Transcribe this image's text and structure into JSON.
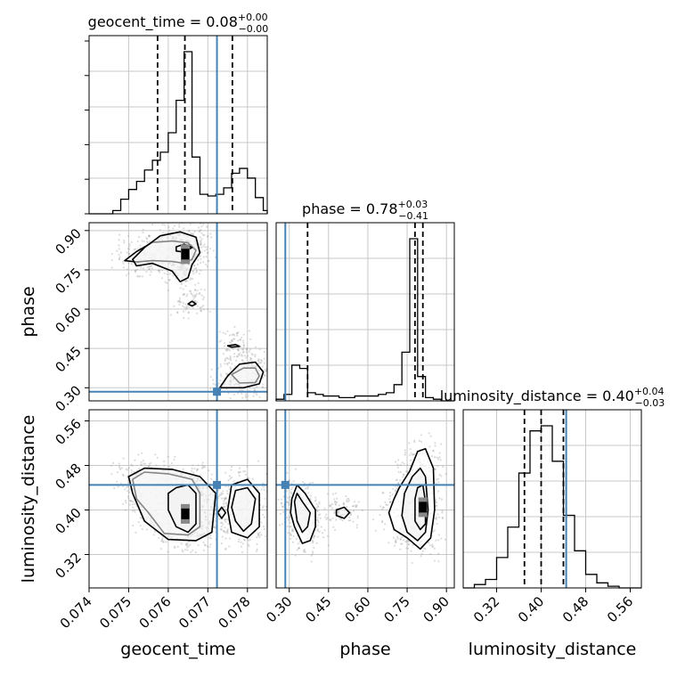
{
  "chart_data": {
    "type": "corner",
    "parameters": [
      "geocent_time",
      "phase",
      "luminosity_distance"
    ],
    "truth_color": "#4682b4",
    "truths": {
      "geocent_time": 0.07723,
      "phase": 0.285,
      "luminosity_distance": 0.445
    },
    "titles": {
      "geocent_time": {
        "prefix": "geocent_time = ",
        "value": "0.08",
        "plus": "+0.00",
        "minus": "−0.00"
      },
      "phase": {
        "prefix": "phase = ",
        "value": "0.78",
        "plus": "+0.03",
        "minus": "−0.41"
      },
      "luminosity_distance": {
        "prefix": "luminosity_distance = ",
        "value": "0.40",
        "plus": "+0.04",
        "minus": "−0.03"
      }
    },
    "axes": {
      "geocent_time": {
        "label": "geocent_time",
        "range": [
          0.074,
          0.0785
        ],
        "ticks": [
          0.074,
          0.075,
          0.076,
          0.077,
          0.078
        ],
        "tick_labels": [
          "0.074",
          "0.075",
          "0.076",
          "0.077",
          "0.078"
        ]
      },
      "phase": {
        "label": "phase",
        "range": [
          0.25,
          0.93
        ],
        "ticks": [
          0.3,
          0.45,
          0.6,
          0.75,
          0.9
        ],
        "tick_labels": [
          "0.30",
          "0.45",
          "0.60",
          "0.75",
          "0.90"
        ]
      },
      "luminosity_distance": {
        "label": "luminosity_distance",
        "range": [
          0.26,
          0.58
        ],
        "ticks": [
          0.32,
          0.4,
          0.48,
          0.56
        ],
        "tick_labels": [
          "0.32",
          "0.40",
          "0.48",
          "0.56"
        ]
      }
    },
    "histograms": {
      "geocent_time": {
        "edges": [
          0.074,
          0.0742,
          0.0744,
          0.0746,
          0.0748,
          0.075,
          0.0752,
          0.0754,
          0.0756,
          0.0758,
          0.076,
          0.0762,
          0.0764,
          0.0766,
          0.0768,
          0.077,
          0.0772,
          0.0774,
          0.0776,
          0.0778,
          0.078,
          0.0782,
          0.0784,
          0.0785
        ],
        "counts": [
          0,
          0,
          0,
          0.02,
          0.09,
          0.15,
          0.2,
          0.27,
          0.33,
          0.38,
          0.5,
          0.7,
          1.0,
          0.35,
          0.12,
          0.11,
          0.12,
          0.16,
          0.25,
          0.28,
          0.22,
          0.1,
          0.02
        ],
        "quantiles": [
          0.07573,
          0.07642,
          0.07762
        ]
      },
      "phase": {
        "edges": [
          0.25,
          0.28,
          0.31,
          0.34,
          0.37,
          0.4,
          0.43,
          0.46,
          0.49,
          0.52,
          0.55,
          0.58,
          0.61,
          0.64,
          0.67,
          0.7,
          0.73,
          0.76,
          0.79,
          0.82,
          0.85,
          0.88,
          0.91,
          0.93
        ],
        "counts": [
          0.01,
          0.04,
          0.22,
          0.2,
          0.05,
          0.04,
          0.03,
          0.03,
          0.02,
          0.02,
          0.03,
          0.03,
          0.03,
          0.04,
          0.05,
          0.1,
          0.3,
          1.0,
          0.15,
          0.02,
          0.01,
          0,
          0
        ],
        "quantiles": [
          0.37,
          0.78,
          0.81
        ]
      },
      "luminosity_distance": {
        "edges": [
          0.26,
          0.28,
          0.3,
          0.32,
          0.34,
          0.36,
          0.38,
          0.4,
          0.42,
          0.44,
          0.46,
          0.48,
          0.5,
          0.52,
          0.54,
          0.56,
          0.58
        ],
        "counts": [
          0.0,
          0.02,
          0.05,
          0.18,
          0.36,
          0.68,
          0.93,
          0.96,
          0.75,
          0.43,
          0.22,
          0.08,
          0.03,
          0.01,
          0,
          0
        ],
        "quantiles": [
          0.37,
          0.4,
          0.44
        ]
      }
    },
    "density": {
      "phase_vs_geocent_time": {
        "contours": [
          [
            [
              0.0749,
              0.785
            ],
            [
              0.0752,
              0.82
            ],
            [
              0.0756,
              0.855
            ],
            [
              0.0761,
              0.86
            ],
            [
              0.0765,
              0.853
            ],
            [
              0.0767,
              0.825
            ],
            [
              0.0766,
              0.79
            ],
            [
              0.0764,
              0.775
            ],
            [
              0.0761,
              0.782
            ],
            [
              0.0756,
              0.785
            ],
            [
              0.0752,
              0.78
            ]
          ],
          [
            [
              0.0751,
              0.79
            ],
            [
              0.0754,
              0.835
            ],
            [
              0.0758,
              0.88
            ],
            [
              0.0763,
              0.895
            ],
            [
              0.0767,
              0.875
            ],
            [
              0.0768,
              0.815
            ],
            [
              0.0766,
              0.77
            ],
            [
              0.0765,
              0.72
            ],
            [
              0.0763,
              0.705
            ],
            [
              0.0761,
              0.745
            ],
            [
              0.0756,
              0.775
            ],
            [
              0.0752,
              0.765
            ]
          ],
          [
            [
              0.0762,
              0.838
            ],
            [
              0.0764,
              0.848
            ],
            [
              0.0766,
              0.835
            ],
            [
              0.0764,
              0.818
            ],
            [
              0.0762,
              0.822
            ]
          ],
          [
            [
              0.0776,
              0.35
            ],
            [
              0.0779,
              0.375
            ],
            [
              0.0782,
              0.375
            ],
            [
              0.0783,
              0.345
            ],
            [
              0.0782,
              0.32
            ],
            [
              0.0778,
              0.318
            ]
          ],
          [
            [
              0.0773,
              0.3
            ],
            [
              0.0775,
              0.345
            ],
            [
              0.0778,
              0.39
            ],
            [
              0.0782,
              0.398
            ],
            [
              0.0784,
              0.36
            ],
            [
              0.0783,
              0.315
            ],
            [
              0.0779,
              0.3
            ]
          ],
          [
            [
              0.0765,
              0.62
            ],
            [
              0.0766,
              0.63
            ],
            [
              0.0767,
              0.62
            ],
            [
              0.0766,
              0.612
            ]
          ],
          [
            [
              0.0775,
              0.46
            ],
            [
              0.0777,
              0.465
            ],
            [
              0.0778,
              0.458
            ],
            [
              0.0776,
              0.455
            ]
          ]
        ],
        "peak": [
          0.07643,
          0.81
        ]
      },
      "luminosity_distance_vs_geocent_time": {
        "contours": [
          [
            [
              0.0751,
              0.455
            ],
            [
              0.0754,
              0.468
            ],
            [
              0.076,
              0.465
            ],
            [
              0.0766,
              0.455
            ],
            [
              0.0768,
              0.43
            ],
            [
              0.0768,
              0.37
            ],
            [
              0.0765,
              0.355
            ],
            [
              0.0759,
              0.358
            ],
            [
              0.0755,
              0.395
            ],
            [
              0.0752,
              0.42
            ]
          ],
          [
            [
              0.075,
              0.46
            ],
            [
              0.0754,
              0.475
            ],
            [
              0.0761,
              0.473
            ],
            [
              0.0768,
              0.46
            ],
            [
              0.0772,
              0.43
            ],
            [
              0.0771,
              0.36
            ],
            [
              0.0767,
              0.345
            ],
            [
              0.076,
              0.347
            ],
            [
              0.0754,
              0.38
            ],
            [
              0.0751,
              0.43
            ]
          ],
          [
            [
              0.0762,
              0.44
            ],
            [
              0.0765,
              0.445
            ],
            [
              0.0767,
              0.43
            ],
            [
              0.0767,
              0.375
            ],
            [
              0.0765,
              0.36
            ],
            [
              0.0762,
              0.37
            ],
            [
              0.076,
              0.4
            ],
            [
              0.076,
              0.43
            ]
          ],
          [
            [
              0.0776,
              0.445
            ],
            [
              0.078,
              0.455
            ],
            [
              0.0783,
              0.43
            ],
            [
              0.0783,
              0.37
            ],
            [
              0.078,
              0.35
            ],
            [
              0.0776,
              0.36
            ],
            [
              0.0775,
              0.4
            ]
          ],
          [
            [
              0.0777,
              0.435
            ],
            [
              0.078,
              0.44
            ],
            [
              0.0782,
              0.42
            ],
            [
              0.0781,
              0.375
            ],
            [
              0.0779,
              0.362
            ],
            [
              0.0777,
              0.38
            ],
            [
              0.0776,
              0.405
            ]
          ],
          [
            [
              0.07725,
              0.395
            ],
            [
              0.07735,
              0.405
            ],
            [
              0.07745,
              0.395
            ],
            [
              0.07735,
              0.385
            ]
          ]
        ],
        "peak": [
          0.07643,
          0.393
        ]
      },
      "luminosity_distance_vs_phase": {
        "contours": [
          [
            [
              0.31,
              0.42
            ],
            [
              0.33,
              0.445
            ],
            [
              0.36,
              0.43
            ],
            [
              0.4,
              0.4
            ],
            [
              0.4,
              0.37
            ],
            [
              0.38,
              0.345
            ],
            [
              0.35,
              0.34
            ],
            [
              0.32,
              0.37
            ],
            [
              0.305,
              0.395
            ]
          ],
          [
            [
              0.32,
              0.415
            ],
            [
              0.33,
              0.43
            ],
            [
              0.35,
              0.415
            ],
            [
              0.38,
              0.395
            ],
            [
              0.37,
              0.37
            ],
            [
              0.35,
              0.36
            ],
            [
              0.33,
              0.38
            ]
          ],
          [
            [
              0.48,
              0.4
            ],
            [
              0.51,
              0.405
            ],
            [
              0.53,
              0.395
            ],
            [
              0.51,
              0.385
            ],
            [
              0.48,
              0.39
            ]
          ],
          [
            [
              0.72,
              0.44
            ],
            [
              0.76,
              0.47
            ],
            [
              0.79,
              0.505
            ],
            [
              0.82,
              0.51
            ],
            [
              0.85,
              0.475
            ],
            [
              0.855,
              0.4
            ],
            [
              0.84,
              0.35
            ],
            [
              0.8,
              0.33
            ],
            [
              0.75,
              0.35
            ],
            [
              0.7,
              0.365
            ],
            [
              0.68,
              0.395
            ],
            [
              0.7,
              0.42
            ]
          ],
          [
            [
              0.74,
              0.43
            ],
            [
              0.77,
              0.46
            ],
            [
              0.8,
              0.475
            ],
            [
              0.82,
              0.46
            ],
            [
              0.83,
              0.4
            ],
            [
              0.82,
              0.36
            ],
            [
              0.79,
              0.345
            ],
            [
              0.75,
              0.36
            ],
            [
              0.73,
              0.39
            ]
          ],
          [
            [
              0.78,
              0.42
            ],
            [
              0.79,
              0.44
            ],
            [
              0.81,
              0.445
            ],
            [
              0.82,
              0.415
            ],
            [
              0.82,
              0.375
            ],
            [
              0.8,
              0.365
            ],
            [
              0.78,
              0.38
            ]
          ]
        ],
        "peak": [
          0.81,
          0.405
        ]
      }
    },
    "grid": true
  }
}
